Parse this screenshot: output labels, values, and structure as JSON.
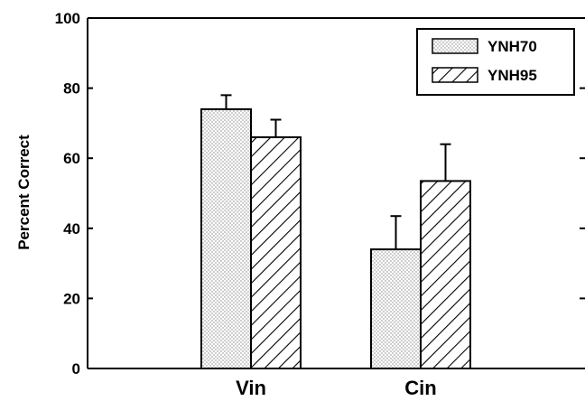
{
  "chart_data": {
    "type": "bar",
    "title": "",
    "xlabel": "",
    "ylabel": "Percent Correct",
    "ylim": [
      0,
      100
    ],
    "yticks": [
      "0",
      "20",
      "40",
      "60",
      "80",
      "100"
    ],
    "categories": [
      "Vin",
      "Cin"
    ],
    "series": [
      {
        "name": "YNH70",
        "values": [
          74,
          34
        ],
        "errors": [
          4,
          9.5
        ],
        "pattern": "dots"
      },
      {
        "name": "YNH95",
        "values": [
          66,
          53.5
        ],
        "errors": [
          5,
          10.5
        ],
        "pattern": "diagonal-hatch"
      }
    ],
    "legend_position": "top-right",
    "grid": false,
    "colors": {
      "axis": "#000000",
      "bar_fill": "#ffffff",
      "dots": "#555555"
    }
  }
}
